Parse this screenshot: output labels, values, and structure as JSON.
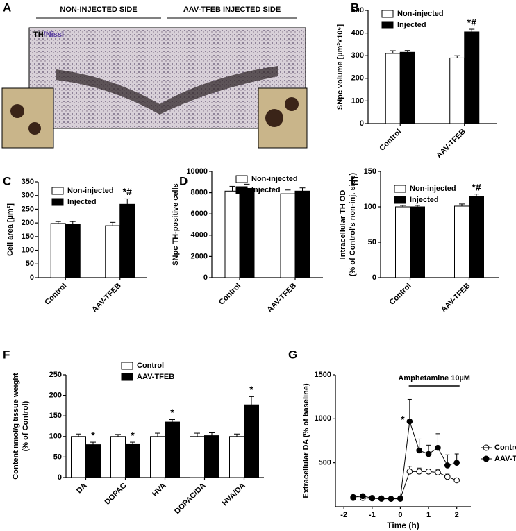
{
  "panel_a": {
    "panel": "A",
    "headings": [
      "NON-INJECTED SIDE",
      "AAV-TFEB INJECTED SIDE"
    ],
    "stain": [
      "TH",
      "/Nissl"
    ]
  },
  "chart_data": [
    {
      "panel": "B",
      "type": "bar",
      "ylabel": [
        "SNpc volume [µm³x10⁶]"
      ],
      "categories": [
        "Control",
        "AAV-TFEB"
      ],
      "series": [
        {
          "name": "Non-injected",
          "color": "#ffffff",
          "values": [
            310,
            290
          ],
          "errors": [
            12,
            10
          ],
          "significance": [
            null,
            null
          ]
        },
        {
          "name": "Injected",
          "color": "#000000",
          "values": [
            315,
            405
          ],
          "errors": [
            8,
            12
          ],
          "significance": [
            null,
            "*#"
          ]
        }
      ],
      "ylim": [
        0,
        500
      ],
      "yticks": [
        0,
        100,
        200,
        300,
        400,
        500
      ]
    },
    {
      "panel": "C",
      "type": "bar",
      "ylabel": [
        "Cell area [µm²]"
      ],
      "categories": [
        "Control",
        "AAV-TFEB"
      ],
      "series": [
        {
          "name": "Non-injected",
          "color": "#ffffff",
          "values": [
            198,
            190
          ],
          "errors": [
            7,
            12
          ],
          "significance": [
            null,
            null
          ]
        },
        {
          "name": "Injected",
          "color": "#000000",
          "values": [
            195,
            268
          ],
          "errors": [
            10,
            20
          ],
          "significance": [
            null,
            "*#"
          ]
        }
      ],
      "ylim": [
        0,
        350
      ],
      "yticks": [
        0,
        50,
        100,
        150,
        200,
        250,
        300,
        350
      ]
    },
    {
      "panel": "D",
      "type": "bar",
      "ylabel": [
        "SNpc TH-positive cells"
      ],
      "categories": [
        "Control",
        "AAV-TFEB"
      ],
      "series": [
        {
          "name": "Non-injected",
          "color": "#ffffff",
          "values": [
            8150,
            7900
          ],
          "errors": [
            450,
            350
          ],
          "significance": [
            null,
            null
          ]
        },
        {
          "name": "Injected",
          "color": "#000000",
          "values": [
            8400,
            8150
          ],
          "errors": [
            400,
            300
          ],
          "significance": [
            null,
            null
          ]
        }
      ],
      "ylim": [
        0,
        10000
      ],
      "yticks": [
        0,
        2000,
        4000,
        6000,
        8000,
        10000
      ]
    },
    {
      "panel": "E",
      "type": "bar",
      "ylabel": [
        "Intracellular TH OD",
        "(% of Control's non-inj. side)"
      ],
      "categories": [
        "Control",
        "AAV-TFEB"
      ],
      "series": [
        {
          "name": "Non-injected",
          "color": "#ffffff",
          "values": [
            100,
            101
          ],
          "errors": [
            2,
            3
          ],
          "significance": [
            null,
            null
          ]
        },
        {
          "name": "Injected",
          "color": "#000000",
          "values": [
            100,
            115
          ],
          "errors": [
            2,
            3
          ],
          "significance": [
            null,
            "*#"
          ]
        }
      ],
      "ylim": [
        0,
        150
      ],
      "yticks": [
        0,
        50,
        100,
        150
      ]
    },
    {
      "panel": "F",
      "type": "bar",
      "ylabel": [
        "Content nmol/g tissue weight",
        "(% of Control)"
      ],
      "categories": [
        "DA",
        "DOPAC",
        "HVA",
        "DOPAC/DA",
        "HVA/DA"
      ],
      "series": [
        {
          "name": "Control",
          "color": "#ffffff",
          "values": [
            100,
            100,
            100,
            100,
            100
          ],
          "errors": [
            6,
            5,
            8,
            8,
            6
          ],
          "significance": [
            null,
            null,
            null,
            null,
            null
          ]
        },
        {
          "name": "AAV-TFEB",
          "color": "#000000",
          "values": [
            80,
            82,
            135,
            102,
            177
          ],
          "errors": [
            6,
            4,
            6,
            7,
            20
          ],
          "significance": [
            "*",
            "*",
            "*",
            null,
            "*"
          ]
        }
      ],
      "ylim": [
        0,
        250
      ],
      "yticks": [
        0,
        50,
        100,
        150,
        200,
        250
      ]
    },
    {
      "panel": "G",
      "type": "line",
      "ylabel": [
        "Extracellular DA  (% of baseline)"
      ],
      "xlabel": "Time (h)",
      "x": [
        -1.67,
        -1.33,
        -1.0,
        -0.67,
        -0.33,
        0,
        0.33,
        0.67,
        1.0,
        1.33,
        1.67,
        2.0
      ],
      "series": [
        {
          "name": "Control",
          "color": "#ffffff",
          "values": [
            100,
            100,
            95,
            90,
            90,
            90,
            400,
            400,
            400,
            390,
            340,
            300
          ],
          "errors": [
            20,
            15,
            15,
            15,
            15,
            15,
            60,
            40,
            30,
            30,
            30,
            20
          ],
          "significance": [
            null,
            null,
            null,
            null,
            null,
            null,
            null,
            null,
            null,
            null,
            null,
            null
          ]
        },
        {
          "name": "AAV-TFEB",
          "color": "#000000",
          "values": [
            110,
            120,
            100,
            95,
            90,
            95,
            970,
            640,
            600,
            670,
            470,
            500
          ],
          "errors": [
            20,
            15,
            15,
            15,
            15,
            15,
            250,
            130,
            100,
            160,
            120,
            100
          ],
          "significance": [
            null,
            null,
            null,
            null,
            null,
            null,
            "*",
            null,
            null,
            null,
            null,
            null
          ]
        }
      ],
      "treatment": {
        "label": "Amphetamine 10µM",
        "x": [
          0.3,
          2.1
        ]
      },
      "xlim": [
        -2.3,
        2.5
      ],
      "xticks": [
        -2,
        -1,
        0,
        1,
        2
      ],
      "ylim": [
        0,
        1500
      ],
      "yticks": [
        500,
        1000,
        1500
      ]
    }
  ]
}
